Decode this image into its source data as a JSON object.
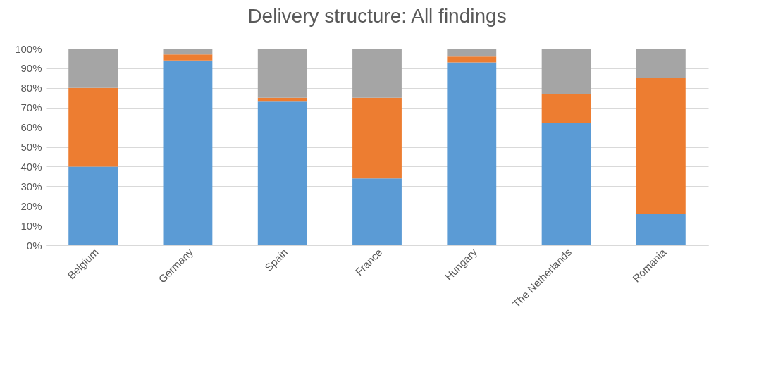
{
  "chart_data": {
    "type": "bar",
    "title": "Delivery structure: All findings",
    "stacked": true,
    "grid": "y",
    "legend": false,
    "categories": [
      "Belgium",
      "Germany",
      "Spain",
      "France",
      "Hungary",
      "The Netherlands",
      "Romania"
    ],
    "ylim": [
      0,
      100
    ],
    "yticks": [
      {
        "value": 0,
        "label": "0%"
      },
      {
        "value": 10,
        "label": "10%"
      },
      {
        "value": 20,
        "label": "20%"
      },
      {
        "value": 30,
        "label": "30%"
      },
      {
        "value": 40,
        "label": "40%"
      },
      {
        "value": 50,
        "label": "50%"
      },
      {
        "value": 60,
        "label": "60%"
      },
      {
        "value": 70,
        "label": "70%"
      },
      {
        "value": 80,
        "label": "80%"
      },
      {
        "value": 90,
        "label": "90%"
      },
      {
        "value": 100,
        "label": "100%"
      }
    ],
    "series": [
      {
        "color": "#5b9bd5",
        "values": [
          40,
          94,
          73,
          34,
          93,
          62,
          16
        ]
      },
      {
        "color": "#ed7d31",
        "values": [
          40,
          3,
          2,
          41,
          3,
          15,
          69
        ]
      },
      {
        "color": "#a5a5a5",
        "values": [
          20,
          3,
          25,
          25,
          4,
          23,
          15
        ]
      }
    ]
  }
}
